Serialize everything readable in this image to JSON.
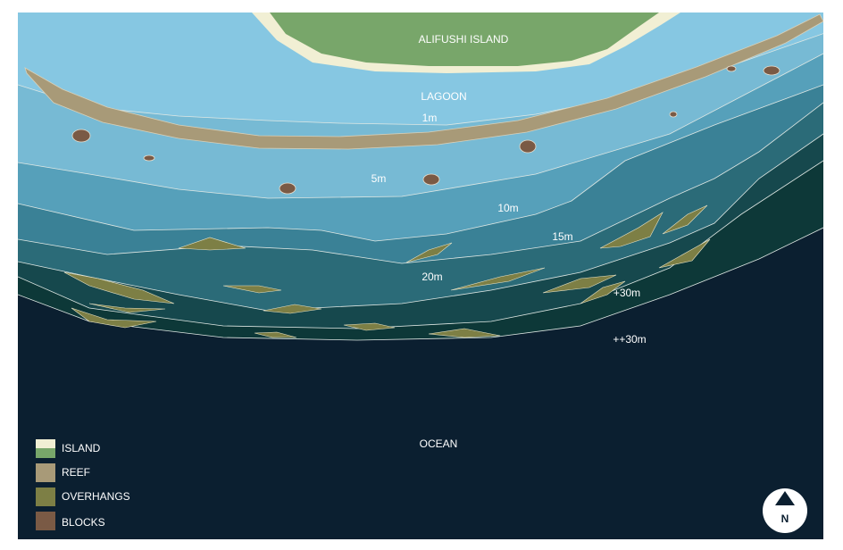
{
  "map": {
    "labels": {
      "island": "ALIFUSHI ISLAND",
      "lagoon": "LAGOON",
      "ocean": "OCEAN"
    },
    "depths": [
      "1m",
      "5m",
      "10m",
      "15m",
      "20m",
      "+30m",
      "++30m"
    ],
    "legend": [
      "ISLAND",
      "REEF",
      "OVERHANGS",
      "BLOCKS"
    ],
    "compass": "N"
  }
}
